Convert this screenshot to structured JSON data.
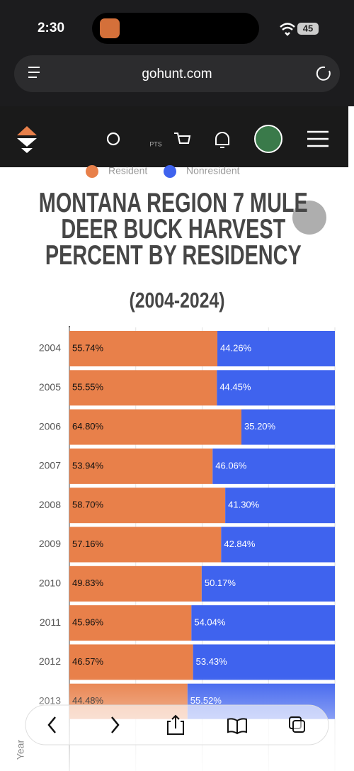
{
  "status_bar": {
    "time": "2:30",
    "battery": "45"
  },
  "browser": {
    "url": "gohunt.com"
  },
  "site_nav": {
    "points_label": "PTS"
  },
  "chart_data": {
    "type": "bar",
    "orientation": "horizontal",
    "stacked": true,
    "title": "MONTANA REGION 7 MULE DEER BUCK HARVEST PERCENT BY RESIDENCY",
    "subtitle": "(2004-2024)",
    "y_label": "Year",
    "categories": [
      "2004",
      "2005",
      "2006",
      "2007",
      "2008",
      "2009",
      "2010",
      "2011",
      "2012",
      "2013"
    ],
    "series": [
      {
        "name": "Resident",
        "color": "#e8804a",
        "values": [
          55.74,
          55.55,
          64.8,
          53.94,
          58.7,
          57.16,
          49.83,
          45.96,
          46.57,
          44.48
        ],
        "value_labels": [
          "55.74%",
          "55.55%",
          "64.80%",
          "53.94%",
          "58.70%",
          "57.16%",
          "49.83%",
          "45.96%",
          "46.57%",
          "44.48%"
        ]
      },
      {
        "name": "Nonresident",
        "color": "#3f63ee",
        "values": [
          44.26,
          44.45,
          35.2,
          46.06,
          41.3,
          42.84,
          50.17,
          54.04,
          53.43,
          55.52
        ],
        "value_labels": [
          "44.26%",
          "44.45%",
          "35.20%",
          "46.06%",
          "41.30%",
          "42.84%",
          "50.17%",
          "54.04%",
          "53.43%",
          "55.52%"
        ]
      }
    ],
    "xlim": [
      0,
      100
    ],
    "xticks": [
      0,
      25,
      50,
      75,
      100
    ],
    "grid": true,
    "legend": "top"
  }
}
